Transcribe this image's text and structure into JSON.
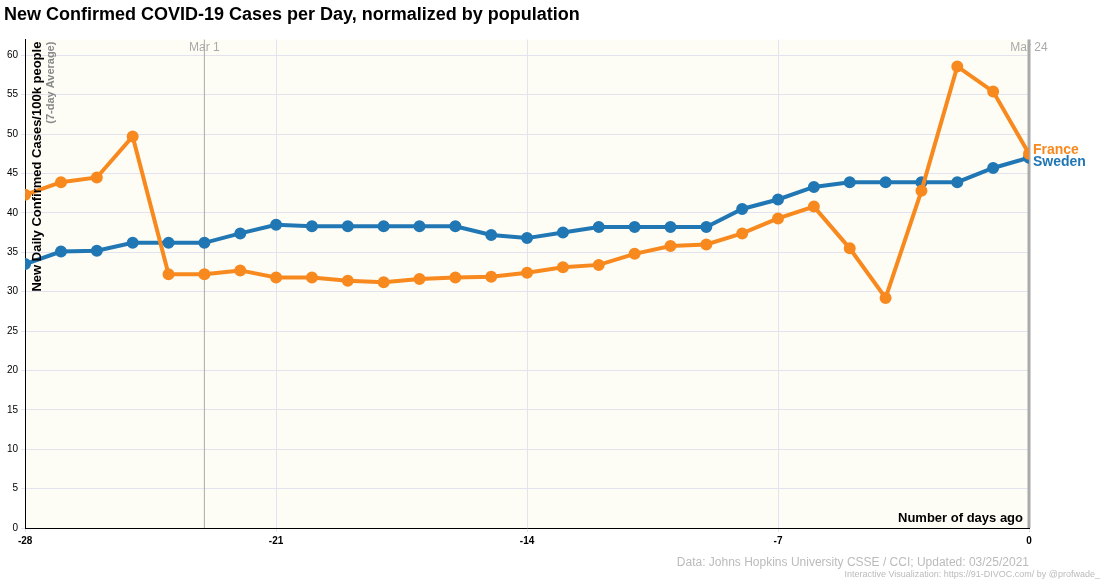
{
  "chart_data": {
    "type": "line",
    "title": "New Confirmed COVID-19 Cases per Day, normalized by population",
    "y_label": "New Daily Confirmed Cases/100k people",
    "y_label_note": "(7-day Average)",
    "x_label": "Number of days ago",
    "footer": [
      "Data: Johns Hopkins University CSSE / CCI; Updated: 03/25/2021",
      "Interactive Visualization: https://91-DIVOC.com/ by @profwade_"
    ],
    "annotations": [
      {
        "x": -23,
        "label": "Mar 1"
      },
      {
        "x": 0,
        "label": "Mar 24"
      }
    ],
    "x": [
      -28,
      -27,
      -26,
      -25,
      -24,
      -23,
      -22,
      -21,
      -20,
      -19,
      -18,
      -17,
      -16,
      -15,
      -14,
      -13,
      -12,
      -11,
      -10,
      -9,
      -8,
      -7,
      -6,
      -5,
      -4,
      -3,
      -2,
      -1,
      0
    ],
    "series": [
      {
        "name": "France",
        "color": "#f7891e",
        "values": [
          42.3,
          43.9,
          44.5,
          49.7,
          32.2,
          32.2,
          32.7,
          31.8,
          31.8,
          31.4,
          31.2,
          31.6,
          31.8,
          31.9,
          32.4,
          33.1,
          33.4,
          34.8,
          35.8,
          36.0,
          37.4,
          39.3,
          40.8,
          35.5,
          29.2,
          42.8,
          58.6,
          55.4,
          47.5
        ]
      },
      {
        "name": "Sweden",
        "color": "#2077b4",
        "values": [
          33.5,
          35.1,
          35.2,
          36.2,
          36.2,
          36.2,
          37.4,
          38.5,
          38.3,
          38.3,
          38.3,
          38.3,
          38.3,
          37.2,
          36.8,
          37.5,
          38.2,
          38.2,
          38.2,
          38.2,
          40.5,
          41.7,
          43.3,
          43.9,
          43.9,
          43.9,
          43.9,
          45.7,
          47.0
        ]
      }
    ],
    "xlim": [
      -28,
      0
    ],
    "xticks": [
      -28,
      -21,
      -14,
      -7,
      0
    ],
    "ylim": [
      0,
      62
    ],
    "yticks": [
      0,
      5,
      10,
      15,
      20,
      25,
      30,
      35,
      40,
      45,
      50,
      55,
      60
    ],
    "grid": true,
    "marker": "circle"
  }
}
